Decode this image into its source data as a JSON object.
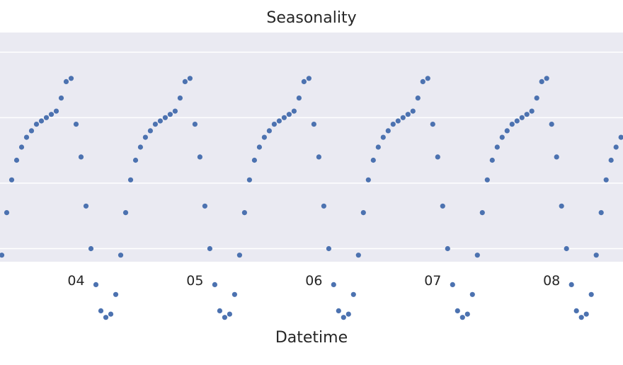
{
  "chart_data": {
    "type": "scatter",
    "title": "Seasonality",
    "xlabel": "Datetime",
    "ylabel": "",
    "x_tick_labels": [
      "04",
      "05",
      "06",
      "07",
      "08"
    ],
    "x_tick_values": [
      4,
      5,
      6,
      7,
      8
    ],
    "xlim": [
      3.36,
      8.6
    ],
    "ylim": [
      -1.2,
      2.3
    ],
    "grid": true,
    "marker_color": "#4c72b0",
    "background_color": "#eaeaf2",
    "grid_color": "#ffffff",
    "series": [
      {
        "pattern_period": 1.0,
        "pattern_start": 3.0,
        "points_per_period": 24,
        "pattern_values": [
          0.9,
          0.4,
          -0.35,
          -1.0,
          -1.55,
          -1.95,
          -2.05,
          -2.0,
          -1.7,
          -1.1,
          -0.45,
          0.05,
          0.35,
          0.55,
          0.7,
          0.8,
          0.9,
          0.95,
          1.0,
          1.05,
          1.1,
          1.3,
          1.55,
          1.6
        ]
      }
    ]
  }
}
